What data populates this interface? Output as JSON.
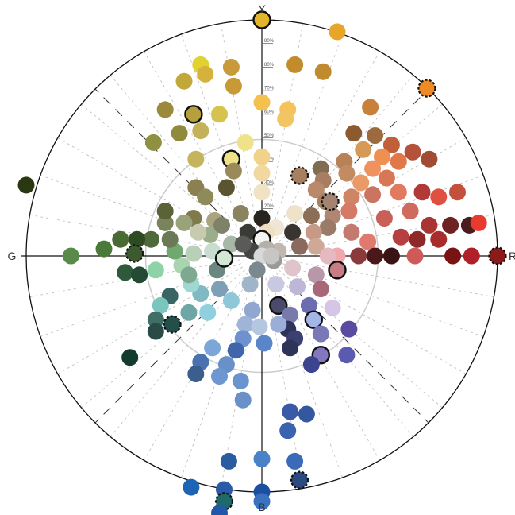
{
  "chart_data": {
    "type": "scatter",
    "coordinate_system": "polar",
    "title": "",
    "axes": {
      "top": "Y",
      "bottom": "B",
      "left": "G",
      "right": "R"
    },
    "radial_ticks": [
      "10%",
      "20%",
      "30%",
      "40%",
      "50%",
      "60%",
      "70%",
      "80%",
      "90%"
    ],
    "rings": [
      0.5,
      1.0
    ],
    "grid": true,
    "colors": {
      "rim": "#111111",
      "axis": "#111111",
      "grid": "#bbbbbb",
      "ring": "#cccccc"
    },
    "points": [
      {
        "x": 0.0,
        "y": 1.0,
        "color": "#e3b52a",
        "mark": "solid"
      },
      {
        "x": 0.32,
        "y": 0.95,
        "color": "#e7a628",
        "mark": ""
      },
      {
        "x": 0.7,
        "y": 0.71,
        "color": "#f08a24",
        "mark": "dashed"
      },
      {
        "x": 1.0,
        "y": 0.0,
        "color": "#8b1a1a",
        "mark": "dashed"
      },
      {
        "x": 0.0,
        "y": -1.0,
        "color": "#1d4fa0",
        "mark": ""
      },
      {
        "x": 0.14,
        "y": 0.81,
        "color": "#c48b2b",
        "mark": ""
      },
      {
        "x": 0.26,
        "y": 0.78,
        "color": "#c08a2e",
        "mark": ""
      },
      {
        "x": -0.13,
        "y": 0.8,
        "color": "#c89a3a",
        "mark": ""
      },
      {
        "x": -0.26,
        "y": 0.81,
        "color": "#e0d230",
        "mark": ""
      },
      {
        "x": -0.33,
        "y": 0.74,
        "color": "#c2a83a",
        "mark": ""
      },
      {
        "x": -0.24,
        "y": 0.77,
        "color": "#d4b23c",
        "mark": ""
      },
      {
        "x": -0.12,
        "y": 0.72,
        "color": "#c79a35",
        "mark": ""
      },
      {
        "x": 0.0,
        "y": 0.65,
        "color": "#f4c04e",
        "mark": ""
      },
      {
        "x": 0.11,
        "y": 0.62,
        "color": "#f5c35a",
        "mark": ""
      },
      {
        "x": 0.1,
        "y": 0.58,
        "color": "#f3c462",
        "mark": ""
      },
      {
        "x": -0.41,
        "y": 0.62,
        "color": "#9a8a3a",
        "mark": ""
      },
      {
        "x": -0.29,
        "y": 0.6,
        "color": "#b5a03c",
        "mark": "solid"
      },
      {
        "x": -0.18,
        "y": 0.6,
        "color": "#d6c24c",
        "mark": ""
      },
      {
        "x": -0.26,
        "y": 0.53,
        "color": "#c4b25a",
        "mark": ""
      },
      {
        "x": -0.35,
        "y": 0.52,
        "color": "#8f8a3c",
        "mark": ""
      },
      {
        "x": -0.46,
        "y": 0.48,
        "color": "#8f9040",
        "mark": ""
      },
      {
        "x": -0.07,
        "y": 0.48,
        "color": "#f0e28a",
        "mark": ""
      },
      {
        "x": 0.0,
        "y": 0.42,
        "color": "#f0d28a",
        "mark": ""
      },
      {
        "x": -0.13,
        "y": 0.41,
        "color": "#efe08a",
        "mark": "solid"
      },
      {
        "x": -0.28,
        "y": 0.41,
        "color": "#c4b45c",
        "mark": ""
      },
      {
        "x": -0.12,
        "y": 0.36,
        "color": "#9a8a5a",
        "mark": ""
      },
      {
        "x": 0.0,
        "y": 0.35,
        "color": "#f0d8a0",
        "mark": ""
      },
      {
        "x": -0.28,
        "y": 0.29,
        "color": "#8a8050",
        "mark": ""
      },
      {
        "x": -0.15,
        "y": 0.29,
        "color": "#5a5530",
        "mark": ""
      },
      {
        "x": -0.24,
        "y": 0.25,
        "color": "#8f8a5a",
        "mark": ""
      },
      {
        "x": 0.0,
        "y": 0.27,
        "color": "#f0e2c2",
        "mark": ""
      },
      {
        "x": -0.09,
        "y": 0.18,
        "color": "#8a8360",
        "mark": ""
      },
      {
        "x": 0.0,
        "y": 0.16,
        "color": "#2a2420",
        "mark": ""
      },
      {
        "x": -0.29,
        "y": 0.16,
        "color": "#7e7a4c",
        "mark": ""
      },
      {
        "x": -0.2,
        "y": 0.15,
        "color": "#a9a37e",
        "mark": ""
      },
      {
        "x": 0.46,
        "y": 0.63,
        "color": "#c8803a",
        "mark": ""
      },
      {
        "x": 0.39,
        "y": 0.52,
        "color": "#8b5a2e",
        "mark": ""
      },
      {
        "x": 0.48,
        "y": 0.51,
        "color": "#9c6a3e",
        "mark": ""
      },
      {
        "x": 0.43,
        "y": 0.45,
        "color": "#d59a56",
        "mark": ""
      },
      {
        "x": 0.35,
        "y": 0.4,
        "color": "#b78258",
        "mark": ""
      },
      {
        "x": 0.25,
        "y": 0.37,
        "color": "#806c50",
        "mark": ""
      },
      {
        "x": 0.16,
        "y": 0.34,
        "color": "#a68060",
        "mark": "dashed"
      },
      {
        "x": 0.26,
        "y": 0.32,
        "color": "#a87e62",
        "mark": ""
      },
      {
        "x": 0.36,
        "y": 0.35,
        "color": "#c48a62",
        "mark": ""
      },
      {
        "x": 0.23,
        "y": 0.28,
        "color": "#b88a6a",
        "mark": ""
      },
      {
        "x": 0.27,
        "y": 0.23,
        "color": "#a88060",
        "mark": ""
      },
      {
        "x": 0.14,
        "y": 0.18,
        "color": "#eee2c8",
        "mark": ""
      },
      {
        "x": 0.21,
        "y": 0.17,
        "color": "#8a6e58",
        "mark": ""
      },
      {
        "x": 0.3,
        "y": 0.17,
        "color": "#b08670",
        "mark": ""
      },
      {
        "x": 0.28,
        "y": 0.12,
        "color": "#9a7a68",
        "mark": ""
      },
      {
        "x": 0.06,
        "y": 0.12,
        "color": "#f0e6d6",
        "mark": ""
      },
      {
        "x": 0.22,
        "y": 0.1,
        "color": "#c79a86",
        "mark": ""
      },
      {
        "x": 0.13,
        "y": 0.1,
        "color": "#3a3430",
        "mark": ""
      },
      {
        "x": 0.02,
        "y": 0.1,
        "color": "#efe0c4",
        "mark": ""
      },
      {
        "x": 0.23,
        "y": 0.04,
        "color": "#d0a898",
        "mark": ""
      },
      {
        "x": 0.16,
        "y": 0.04,
        "color": "#8a6a5e",
        "mark": ""
      },
      {
        "x": 0.07,
        "y": 0.02,
        "color": "#c0b8b0",
        "mark": ""
      },
      {
        "x": 0.29,
        "y": 0.23,
        "color": "#a38470",
        "mark": "dashed"
      },
      {
        "x": 0.55,
        "y": 0.47,
        "color": "#c0603a",
        "mark": ""
      },
      {
        "x": 0.64,
        "y": 0.44,
        "color": "#b4523a",
        "mark": ""
      },
      {
        "x": 0.71,
        "y": 0.41,
        "color": "#a14a34",
        "mark": ""
      },
      {
        "x": 0.51,
        "y": 0.42,
        "color": "#f08f52",
        "mark": ""
      },
      {
        "x": 0.58,
        "y": 0.4,
        "color": "#e0784a",
        "mark": ""
      },
      {
        "x": 0.47,
        "y": 0.37,
        "color": "#f09260",
        "mark": ""
      },
      {
        "x": 0.53,
        "y": 0.33,
        "color": "#d87656",
        "mark": ""
      },
      {
        "x": 0.42,
        "y": 0.31,
        "color": "#ea9a66",
        "mark": ""
      },
      {
        "x": 0.47,
        "y": 0.26,
        "color": "#cc7462",
        "mark": ""
      },
      {
        "x": 0.38,
        "y": 0.25,
        "color": "#cf8466",
        "mark": ""
      },
      {
        "x": 0.37,
        "y": 0.19,
        "color": "#d47a66",
        "mark": ""
      },
      {
        "x": 0.58,
        "y": 0.27,
        "color": "#e27a60",
        "mark": ""
      },
      {
        "x": 0.68,
        "y": 0.27,
        "color": "#b23a36",
        "mark": ""
      },
      {
        "x": 0.75,
        "y": 0.25,
        "color": "#e05040",
        "mark": ""
      },
      {
        "x": 0.83,
        "y": 0.27,
        "color": "#c2503a",
        "mark": ""
      },
      {
        "x": 0.52,
        "y": 0.16,
        "color": "#c86058",
        "mark": ""
      },
      {
        "x": 0.63,
        "y": 0.19,
        "color": "#d06a5e",
        "mark": ""
      },
      {
        "x": 0.71,
        "y": 0.13,
        "color": "#a83434",
        "mark": ""
      },
      {
        "x": 0.8,
        "y": 0.13,
        "color": "#6e2222",
        "mark": ""
      },
      {
        "x": 0.88,
        "y": 0.13,
        "color": "#4a1c1c",
        "mark": ""
      },
      {
        "x": 0.92,
        "y": 0.14,
        "color": "#e83a2e",
        "mark": ""
      },
      {
        "x": 0.59,
        "y": 0.08,
        "color": "#b64040",
        "mark": ""
      },
      {
        "x": 0.66,
        "y": 0.07,
        "color": "#8f2828",
        "mark": ""
      },
      {
        "x": 0.75,
        "y": 0.07,
        "color": "#a82c2c",
        "mark": ""
      },
      {
        "x": 0.45,
        "y": 0.06,
        "color": "#e07a6e",
        "mark": ""
      },
      {
        "x": 0.38,
        "y": 0.1,
        "color": "#c47a6e",
        "mark": ""
      },
      {
        "x": 0.81,
        "y": 0.0,
        "color": "#7a1414",
        "mark": ""
      },
      {
        "x": 0.89,
        "y": 0.0,
        "color": "#b0202a",
        "mark": ""
      },
      {
        "x": 0.65,
        "y": 0.0,
        "color": "#d05a5a",
        "mark": ""
      },
      {
        "x": 0.55,
        "y": 0.0,
        "color": "#3a1414",
        "mark": ""
      },
      {
        "x": 0.48,
        "y": 0.0,
        "color": "#4a1818",
        "mark": ""
      },
      {
        "x": 0.41,
        "y": 0.0,
        "color": "#8a3a3a",
        "mark": ""
      },
      {
        "x": 0.32,
        "y": 0.0,
        "color": "#f0a8ac",
        "mark": ""
      },
      {
        "x": 0.28,
        "y": 0.0,
        "color": "#e6b8c0",
        "mark": ""
      },
      {
        "x": 0.32,
        "y": -0.06,
        "color": "#c87c84",
        "mark": "solid"
      },
      {
        "x": 0.23,
        "y": -0.08,
        "color": "#b898a8",
        "mark": ""
      },
      {
        "x": 0.25,
        "y": -0.14,
        "color": "#a8687a",
        "mark": ""
      },
      {
        "x": 0.15,
        "y": -0.13,
        "color": "#bdb6d6",
        "mark": ""
      },
      {
        "x": 0.06,
        "y": -0.12,
        "color": "#c8c8e0",
        "mark": ""
      },
      {
        "x": 0.13,
        "y": -0.05,
        "color": "#e0c4cc",
        "mark": ""
      },
      {
        "x": 0.07,
        "y": -0.21,
        "color": "#4a4a6a",
        "mark": "solid"
      },
      {
        "x": 0.12,
        "y": -0.25,
        "color": "#787aaa",
        "mark": ""
      },
      {
        "x": 0.2,
        "y": -0.21,
        "color": "#6c6cb0",
        "mark": ""
      },
      {
        "x": 0.3,
        "y": -0.22,
        "color": "#d6c6e6",
        "mark": ""
      },
      {
        "x": 0.22,
        "y": -0.27,
        "color": "#a4b6e8",
        "mark": "solid"
      },
      {
        "x": 0.25,
        "y": -0.33,
        "color": "#7a78b6",
        "mark": ""
      },
      {
        "x": 0.37,
        "y": -0.31,
        "color": "#5a4aa0",
        "mark": ""
      },
      {
        "x": 0.25,
        "y": -0.42,
        "color": "#8278c0",
        "mark": "solid"
      },
      {
        "x": 0.36,
        "y": -0.42,
        "color": "#5a5ab0",
        "mark": ""
      },
      {
        "x": 0.21,
        "y": -0.46,
        "color": "#3c4490",
        "mark": ""
      },
      {
        "x": 0.11,
        "y": -0.31,
        "color": "#2e3458",
        "mark": ""
      },
      {
        "x": 0.14,
        "y": -0.35,
        "color": "#3a4070",
        "mark": ""
      },
      {
        "x": 0.12,
        "y": -0.39,
        "color": "#2e3458",
        "mark": ""
      },
      {
        "x": 0.07,
        "y": -0.29,
        "color": "#9aaed8",
        "mark": ""
      },
      {
        "x": -0.04,
        "y": -0.23,
        "color": "#90a8d0",
        "mark": ""
      },
      {
        "x": -0.07,
        "y": -0.29,
        "color": "#a0b4d8",
        "mark": ""
      },
      {
        "x": -0.01,
        "y": -0.3,
        "color": "#b4c6e0",
        "mark": ""
      },
      {
        "x": 0.01,
        "y": -0.37,
        "color": "#5a86c8",
        "mark": ""
      },
      {
        "x": -0.08,
        "y": -0.35,
        "color": "#6e92d0",
        "mark": ""
      },
      {
        "x": -0.11,
        "y": -0.4,
        "color": "#3e66a8",
        "mark": ""
      },
      {
        "x": -0.21,
        "y": -0.39,
        "color": "#7aa6d8",
        "mark": ""
      },
      {
        "x": -0.15,
        "y": -0.46,
        "color": "#6a90c8",
        "mark": ""
      },
      {
        "x": -0.26,
        "y": -0.45,
        "color": "#4a72b0",
        "mark": ""
      },
      {
        "x": -0.28,
        "y": -0.5,
        "color": "#3c5e8c",
        "mark": ""
      },
      {
        "x": -0.18,
        "y": -0.51,
        "color": "#6e96d0",
        "mark": ""
      },
      {
        "x": -0.09,
        "y": -0.53,
        "color": "#6a94d0",
        "mark": ""
      },
      {
        "x": -0.08,
        "y": -0.61,
        "color": "#6a90c8",
        "mark": ""
      },
      {
        "x": 0.12,
        "y": -0.66,
        "color": "#3a5aa8",
        "mark": ""
      },
      {
        "x": 0.19,
        "y": -0.67,
        "color": "#3458a0",
        "mark": ""
      },
      {
        "x": 0.11,
        "y": -0.74,
        "color": "#3a64b0",
        "mark": ""
      },
      {
        "x": -0.14,
        "y": -0.87,
        "color": "#2a5ca0",
        "mark": ""
      },
      {
        "x": 0.0,
        "y": -0.86,
        "color": "#4a82c8",
        "mark": ""
      },
      {
        "x": 0.14,
        "y": -0.87,
        "color": "#3a6ab8",
        "mark": ""
      },
      {
        "x": 0.16,
        "y": -0.95,
        "color": "#2a4a80",
        "mark": "dashed"
      },
      {
        "x": -0.3,
        "y": -0.98,
        "color": "#1e64b4",
        "mark": ""
      },
      {
        "x": -0.16,
        "y": -0.99,
        "color": "#2a5aa8",
        "mark": ""
      },
      {
        "x": -0.16,
        "y": -1.04,
        "color": "#1e6a6a",
        "mark": "dashed"
      },
      {
        "x": -0.18,
        "y": -1.09,
        "color": "#2258a8",
        "mark": ""
      },
      {
        "x": 0.0,
        "y": -1.04,
        "color": "#3a72c0",
        "mark": ""
      },
      {
        "x": -0.05,
        "y": -0.12,
        "color": "#a0b6c8",
        "mark": ""
      },
      {
        "x": -0.18,
        "y": -0.14,
        "color": "#7ea0b6",
        "mark": ""
      },
      {
        "x": -0.26,
        "y": -0.16,
        "color": "#80b8c4",
        "mark": ""
      },
      {
        "x": -0.13,
        "y": -0.19,
        "color": "#8ec8d8",
        "mark": ""
      },
      {
        "x": -0.23,
        "y": -0.24,
        "color": "#90d0de",
        "mark": ""
      },
      {
        "x": -0.31,
        "y": -0.24,
        "color": "#6ea6a6",
        "mark": ""
      },
      {
        "x": -0.39,
        "y": -0.17,
        "color": "#3a6464",
        "mark": ""
      },
      {
        "x": -0.3,
        "y": -0.12,
        "color": "#9ed8d0",
        "mark": ""
      },
      {
        "x": -0.43,
        "y": -0.21,
        "color": "#7ac6be",
        "mark": ""
      },
      {
        "x": -0.45,
        "y": -0.27,
        "color": "#3e6e66",
        "mark": ""
      },
      {
        "x": -0.45,
        "y": -0.32,
        "color": "#2a4a48",
        "mark": ""
      },
      {
        "x": -0.38,
        "y": -0.29,
        "color": "#244e4a",
        "mark": "dashed"
      },
      {
        "x": -0.56,
        "y": -0.43,
        "color": "#143c2e",
        "mark": ""
      },
      {
        "x": -0.45,
        "y": -0.06,
        "color": "#8ed2a8",
        "mark": ""
      },
      {
        "x": -0.34,
        "y": -0.04,
        "color": "#a8d4b0",
        "mark": ""
      },
      {
        "x": -0.29,
        "y": 0.01,
        "color": "#b8d0b8",
        "mark": ""
      },
      {
        "x": -0.37,
        "y": 0.02,
        "color": "#70a870",
        "mark": ""
      },
      {
        "x": -0.31,
        "y": -0.08,
        "color": "#7ea890",
        "mark": ""
      },
      {
        "x": -0.19,
        "y": -0.06,
        "color": "#6a8880",
        "mark": ""
      },
      {
        "x": -0.21,
        "y": 0.02,
        "color": "#c8dcd0",
        "mark": ""
      },
      {
        "x": -0.13,
        "y": 0.05,
        "color": "#a8b8a8",
        "mark": ""
      },
      {
        "x": -0.16,
        "y": -0.01,
        "color": "#d4e6d4",
        "mark": "solid"
      },
      {
        "x": -0.22,
        "y": 0.09,
        "color": "#9aae8c",
        "mark": ""
      },
      {
        "x": -0.17,
        "y": 0.13,
        "color": "#7e8268",
        "mark": ""
      },
      {
        "x": -0.27,
        "y": 0.1,
        "color": "#c8cab0",
        "mark": ""
      },
      {
        "x": -0.33,
        "y": 0.14,
        "color": "#9aa27a",
        "mark": ""
      },
      {
        "x": -0.39,
        "y": 0.07,
        "color": "#6a7a56",
        "mark": ""
      },
      {
        "x": -0.41,
        "y": 0.14,
        "color": "#7a845a",
        "mark": ""
      },
      {
        "x": -0.47,
        "y": 0.07,
        "color": "#4e6a3a",
        "mark": ""
      },
      {
        "x": -0.53,
        "y": 0.07,
        "color": "#2e4a22",
        "mark": ""
      },
      {
        "x": -0.6,
        "y": 0.07,
        "color": "#4a6a34",
        "mark": ""
      },
      {
        "x": -0.54,
        "y": 0.01,
        "color": "#3c5a30",
        "mark": "dashed"
      },
      {
        "x": -0.67,
        "y": 0.03,
        "color": "#4a7a3a",
        "mark": ""
      },
      {
        "x": -0.58,
        "y": -0.07,
        "color": "#2e5a3a",
        "mark": ""
      },
      {
        "x": -0.52,
        "y": -0.08,
        "color": "#244a34",
        "mark": ""
      },
      {
        "x": -0.81,
        "y": 0.0,
        "color": "#5a8a4a",
        "mark": ""
      },
      {
        "x": -1.0,
        "y": 0.3,
        "color": "#2a3812",
        "mark": ""
      },
      {
        "x": -0.41,
        "y": 0.19,
        "color": "#5a6238",
        "mark": ""
      },
      {
        "x": -0.06,
        "y": 0.1,
        "color": "#3a3a36",
        "mark": ""
      },
      {
        "x": 0.0,
        "y": 0.07,
        "color": "#f4f4f0",
        "mark": "solid"
      },
      {
        "x": -0.04,
        "y": 0.02,
        "color": "#444444",
        "mark": ""
      },
      {
        "x": 0.02,
        "y": 0.03,
        "color": "#b4b0a8",
        "mark": ""
      },
      {
        "x": 0.0,
        "y": 0.0,
        "color": "#d8d8d8",
        "mark": ""
      },
      {
        "x": -0.08,
        "y": 0.05,
        "color": "#5a5a58",
        "mark": ""
      },
      {
        "x": 0.05,
        "y": -0.02,
        "color": "#9c9a98",
        "mark": ""
      },
      {
        "x": -0.02,
        "y": -0.06,
        "color": "#7a8890",
        "mark": ""
      },
      {
        "x": 0.04,
        "y": 0.0,
        "color": "#c8c6c4",
        "mark": ""
      }
    ]
  }
}
